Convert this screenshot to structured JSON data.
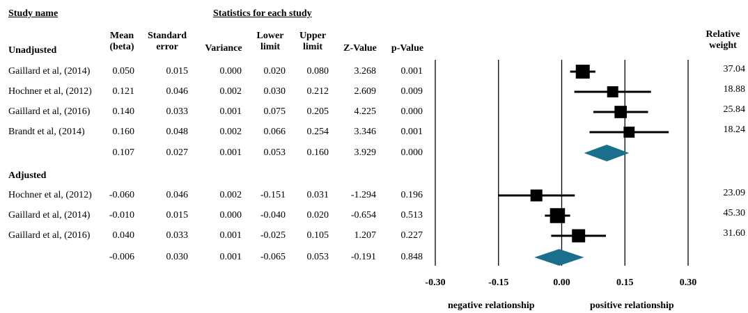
{
  "headers": {
    "study_name": "Study name",
    "statistics": "Statistics for each study",
    "mean": "Mean (beta)",
    "se": "Standard error",
    "variance": "Variance",
    "lower": "Lower limit",
    "upper": "Upper limit",
    "z": "Z-Value",
    "p": "p-Value",
    "weight": "Relative weight"
  },
  "chart_data": {
    "type": "forest",
    "xlim": [
      -0.3,
      0.3
    ],
    "x_ticks": [
      "-0.30",
      "-0.15",
      "0.00",
      "0.15",
      "0.30"
    ],
    "x_tick_values": [
      -0.3,
      -0.15,
      0.0,
      0.15,
      0.3
    ],
    "reference_lines": [
      -0.15,
      0.0,
      0.15,
      0.3
    ],
    "left_label": "negative relationship",
    "right_label": "positive relationship",
    "groups": [
      {
        "name": "Unadjusted",
        "studies": [
          {
            "study": "Gaillard et al, (2014)",
            "mean": "0.050",
            "se": "0.015",
            "variance": "0.000",
            "lower": "0.020",
            "upper": "0.080",
            "z": "3.268",
            "p": "0.001",
            "weight": "37.04",
            "mean_v": 0.05,
            "lower_v": 0.02,
            "upper_v": 0.08,
            "weight_v": 37.04
          },
          {
            "study": "Hochner et al, (2012)",
            "mean": "0.121",
            "se": "0.046",
            "variance": "0.002",
            "lower": "0.030",
            "upper": "0.212",
            "z": "2.609",
            "p": "0.009",
            "weight": "18.88",
            "mean_v": 0.121,
            "lower_v": 0.03,
            "upper_v": 0.212,
            "weight_v": 18.88
          },
          {
            "study": "Gaillard et al, (2016)",
            "mean": "0.140",
            "se": "0.033",
            "variance": "0.001",
            "lower": "0.075",
            "upper": "0.205",
            "z": "4.225",
            "p": "0.000",
            "weight": "25.84",
            "mean_v": 0.14,
            "lower_v": 0.075,
            "upper_v": 0.205,
            "weight_v": 25.84
          },
          {
            "study": "Brandt et al, (2014)",
            "mean": "0.160",
            "se": "0.048",
            "variance": "0.002",
            "lower": "0.066",
            "upper": "0.254",
            "z": "3.346",
            "p": "0.001",
            "weight": "18.24",
            "mean_v": 0.16,
            "lower_v": 0.066,
            "upper_v": 0.254,
            "weight_v": 18.24
          }
        ],
        "summary": {
          "mean": "0.107",
          "se": "0.027",
          "variance": "0.001",
          "lower": "0.053",
          "upper": "0.160",
          "z": "3.929",
          "p": "0.000",
          "mean_v": 0.107,
          "lower_v": 0.053,
          "upper_v": 0.16
        }
      },
      {
        "name": "Adjusted",
        "studies": [
          {
            "study": "Hochner et al, (2012)",
            "mean": "-0.060",
            "se": "0.046",
            "variance": "0.002",
            "lower": "-0.151",
            "upper": "0.031",
            "z": "-1.294",
            "p": "0.196",
            "weight": "23.09",
            "mean_v": -0.06,
            "lower_v": -0.151,
            "upper_v": 0.031,
            "weight_v": 23.09
          },
          {
            "study": "Gaillard et al, (2014)",
            "mean": "-0.010",
            "se": "0.015",
            "variance": "0.000",
            "lower": "-0.040",
            "upper": "0.020",
            "z": "-0.654",
            "p": "0.513",
            "weight": "45.30",
            "mean_v": -0.01,
            "lower_v": -0.04,
            "upper_v": 0.02,
            "weight_v": 45.3
          },
          {
            "study": "Gaillard et al, (2016)",
            "mean": "0.040",
            "se": "0.033",
            "variance": "0.001",
            "lower": "-0.025",
            "upper": "0.105",
            "z": "1.207",
            "p": "0.227",
            "weight": "31.60",
            "mean_v": 0.04,
            "lower_v": -0.025,
            "upper_v": 0.105,
            "weight_v": 31.6
          }
        ],
        "summary": {
          "mean": "-0.006",
          "se": "0.030",
          "variance": "0.001",
          "lower": "-0.065",
          "upper": "0.053",
          "z": "-0.191",
          "p": "0.848",
          "mean_v": -0.006,
          "lower_v": -0.065,
          "upper_v": 0.053
        }
      }
    ]
  },
  "colors": {
    "marker": "#000000",
    "diamond": "#1b6f8c",
    "axis": "#000000"
  }
}
